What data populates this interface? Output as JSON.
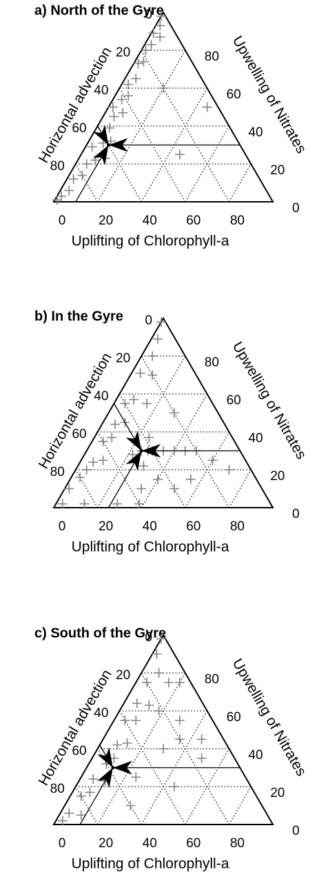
{
  "chart_data": [
    {
      "type": "ternary",
      "title": "a) North of the Gyre",
      "left_label": "Horizontal advection",
      "right_label": "Upwelling of Nitrates",
      "bottom_label": "Uplifting of Chlorophyll-a",
      "left_ticks": [
        0,
        20,
        40,
        60,
        80
      ],
      "right_ticks": [
        0,
        20,
        40,
        60,
        80
      ],
      "bottom_ticks": [
        0,
        20,
        40,
        60,
        80
      ],
      "grid": true,
      "color": "#808080",
      "points": [
        [
          2,
          0,
          98
        ],
        [
          5,
          2,
          93
        ],
        [
          10,
          1,
          89
        ],
        [
          14,
          3,
          83
        ],
        [
          18,
          2,
          80
        ],
        [
          22,
          4,
          74
        ],
        [
          25,
          2,
          73
        ],
        [
          30,
          5,
          65
        ],
        [
          35,
          3,
          62
        ],
        [
          38,
          6,
          56
        ],
        [
          42,
          4,
          54
        ],
        [
          45,
          8,
          47
        ],
        [
          50,
          5,
          45
        ],
        [
          55,
          6,
          39
        ],
        [
          58,
          10,
          32
        ],
        [
          62,
          7,
          31
        ],
        [
          65,
          12,
          23
        ],
        [
          70,
          8,
          22
        ],
        [
          75,
          5,
          20
        ],
        [
          80,
          6,
          14
        ],
        [
          85,
          3,
          12
        ],
        [
          90,
          4,
          6
        ],
        [
          95,
          2,
          3
        ],
        [
          98,
          1,
          1
        ],
        [
          5,
          45,
          50
        ],
        [
          30,
          45,
          25
        ],
        [
          20,
          20,
          60
        ],
        [
          8,
          5,
          87
        ],
        [
          48,
          2,
          50
        ],
        [
          68,
          3,
          29
        ]
      ],
      "mean": [
        60,
        10,
        30
      ]
    },
    {
      "type": "ternary",
      "title": "b) In the Gyre",
      "left_label": "Horizontal advection",
      "right_label": "Upwelling of Nitrates",
      "bottom_label": "Uplifting of Chlorophyll-a",
      "left_ticks": [
        0,
        20,
        40,
        60,
        80
      ],
      "right_ticks": [
        0,
        20,
        40,
        60,
        80
      ],
      "bottom_ticks": [
        0,
        20,
        40,
        60,
        80
      ],
      "grid": true,
      "color": "#808080",
      "points": [
        [
          2,
          0,
          98
        ],
        [
          8,
          3,
          89
        ],
        [
          15,
          5,
          80
        ],
        [
          20,
          10,
          70
        ],
        [
          25,
          4,
          71
        ],
        [
          30,
          15,
          55
        ],
        [
          35,
          8,
          57
        ],
        [
          40,
          5,
          55
        ],
        [
          45,
          10,
          45
        ],
        [
          50,
          6,
          44
        ],
        [
          55,
          8,
          37
        ],
        [
          60,
          5,
          35
        ],
        [
          65,
          10,
          25
        ],
        [
          70,
          6,
          24
        ],
        [
          75,
          5,
          20
        ],
        [
          80,
          4,
          16
        ],
        [
          88,
          2,
          10
        ],
        [
          95,
          3,
          2
        ],
        [
          45,
          25,
          30
        ],
        [
          40,
          30,
          30
        ],
        [
          50,
          22,
          28
        ],
        [
          35,
          35,
          30
        ],
        [
          42,
          28,
          30
        ],
        [
          30,
          40,
          30
        ],
        [
          25,
          45,
          30
        ],
        [
          48,
          30,
          22
        ],
        [
          38,
          25,
          37
        ],
        [
          20,
          30,
          50
        ],
        [
          15,
          60,
          25
        ],
        [
          10,
          70,
          20
        ],
        [
          55,
          35,
          10
        ],
        [
          40,
          50,
          10
        ],
        [
          60,
          38,
          2
        ],
        [
          70,
          28,
          2
        ],
        [
          85,
          13,
          2
        ],
        [
          30,
          55,
          15
        ],
        [
          20,
          50,
          30
        ],
        [
          45,
          40,
          15
        ]
      ],
      "mean": [
        45,
        25,
        30
      ]
    },
    {
      "type": "ternary",
      "title": "c) South of the Gyre",
      "left_label": "Horizontal advection",
      "right_label": "Upwelling of Nitrates",
      "bottom_label": "Uplifting of Chlorophyll-a",
      "left_ticks": [
        0,
        20,
        40,
        60,
        80
      ],
      "right_ticks": [
        0,
        20,
        40,
        60,
        80
      ],
      "bottom_ticks": [
        0,
        20,
        40,
        60,
        80
      ],
      "grid": true,
      "color": "#808080",
      "points": [
        [
          2,
          0,
          98
        ],
        [
          8,
          2,
          90
        ],
        [
          12,
          8,
          80
        ],
        [
          10,
          15,
          75
        ],
        [
          20,
          5,
          75
        ],
        [
          25,
          12,
          63
        ],
        [
          30,
          6,
          64
        ],
        [
          22,
          18,
          60
        ],
        [
          35,
          10,
          55
        ],
        [
          40,
          5,
          55
        ],
        [
          15,
          30,
          55
        ],
        [
          20,
          35,
          45
        ],
        [
          45,
          12,
          43
        ],
        [
          50,
          8,
          42
        ],
        [
          55,
          10,
          35
        ],
        [
          30,
          30,
          40
        ],
        [
          10,
          45,
          45
        ],
        [
          60,
          8,
          32
        ],
        [
          65,
          12,
          23
        ],
        [
          70,
          6,
          24
        ],
        [
          50,
          25,
          25
        ],
        [
          75,
          8,
          17
        ],
        [
          80,
          5,
          15
        ],
        [
          85,
          10,
          5
        ],
        [
          90,
          4,
          6
        ],
        [
          95,
          3,
          2
        ],
        [
          60,
          30,
          10
        ],
        [
          35,
          45,
          20
        ],
        [
          5,
          20,
          75
        ],
        [
          15,
          50,
          35
        ]
      ],
      "mean": [
        58,
        12,
        30
      ]
    }
  ]
}
